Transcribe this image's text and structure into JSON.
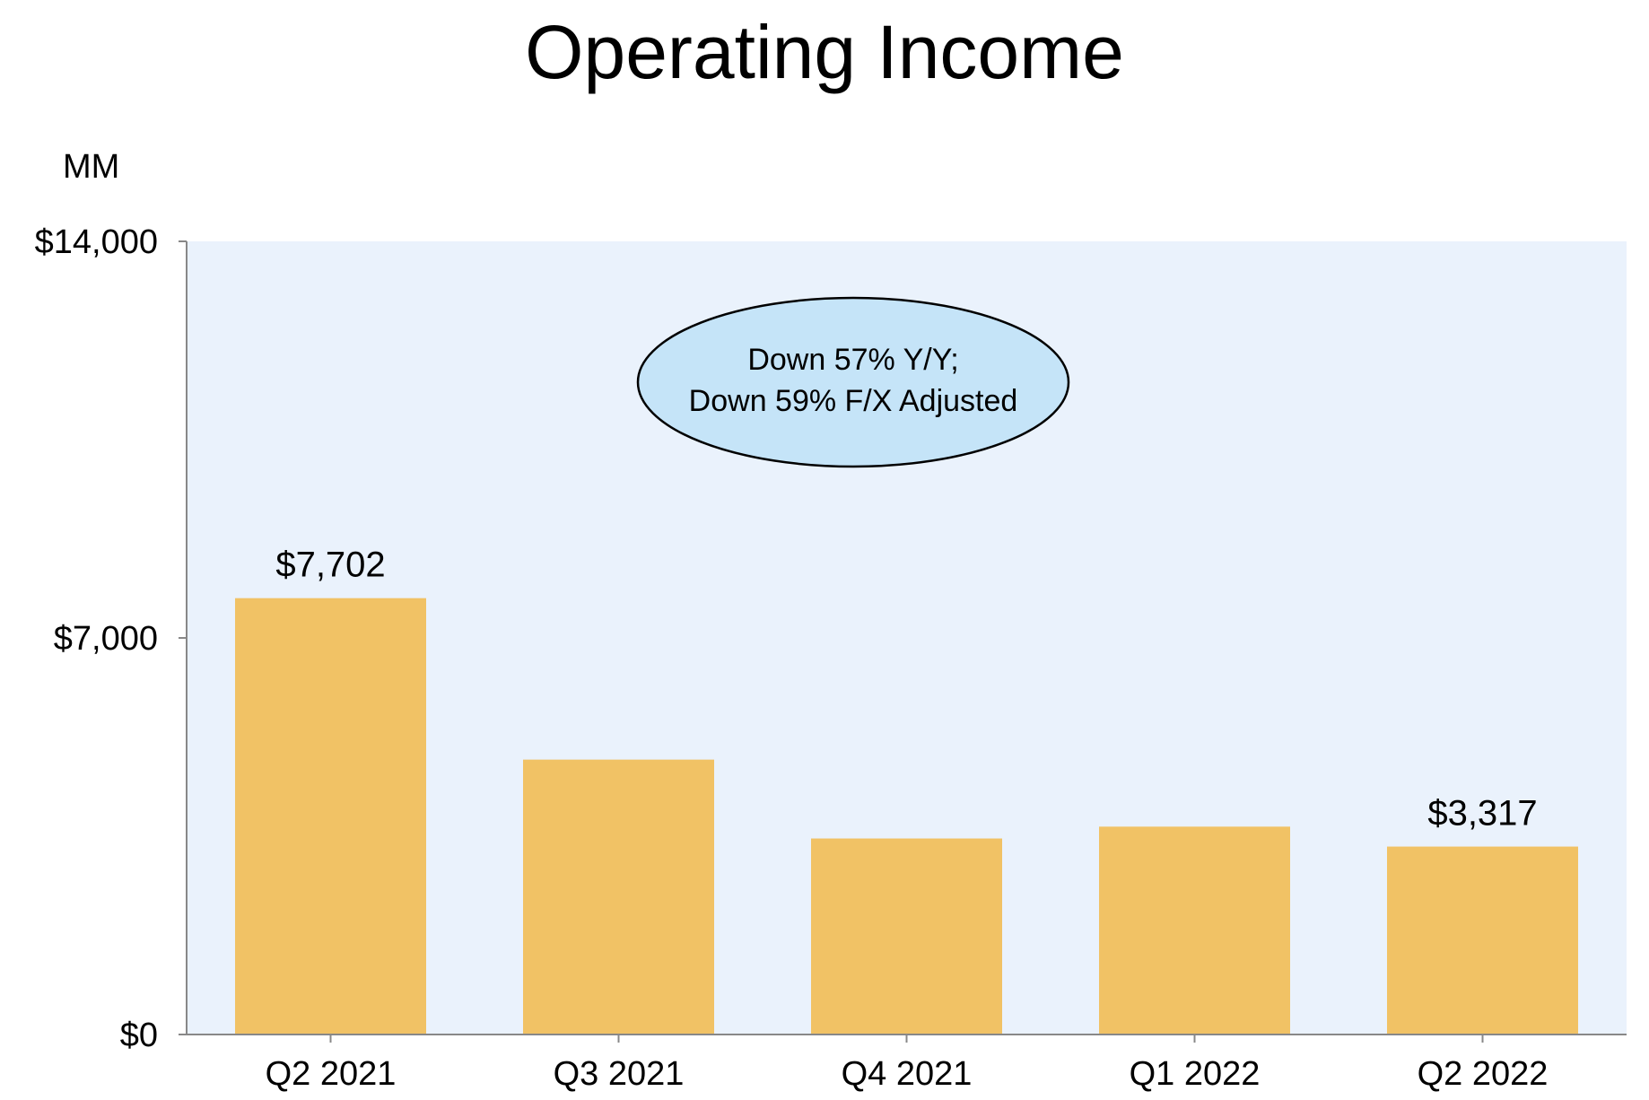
{
  "chart_data": {
    "type": "bar",
    "title": "Operating Income",
    "unit_label": "MM",
    "categories": [
      "Q2 2021",
      "Q3 2021",
      "Q4 2021",
      "Q1 2022",
      "Q2 2022"
    ],
    "values": [
      7702,
      4852,
      3460,
      3669,
      3317
    ],
    "data_labels": [
      "$7,702",
      "",
      "",
      "",
      "$3,317"
    ],
    "ylim": [
      0,
      14000
    ],
    "y_ticks": [
      0,
      7000,
      14000
    ],
    "y_tick_labels": [
      "$0",
      "$7,000",
      "$14,000"
    ],
    "xlabel": "",
    "ylabel": "",
    "grid": false,
    "annotations": [
      {
        "lines": [
          "Down 57% Y/Y;",
          "Down 59% F/X Adjusted"
        ]
      }
    ],
    "colors": {
      "bar": "#F1C265",
      "plot_background": "#EAF2FC",
      "callout_fill": "#C5E4F8",
      "axis": "#888888"
    }
  }
}
